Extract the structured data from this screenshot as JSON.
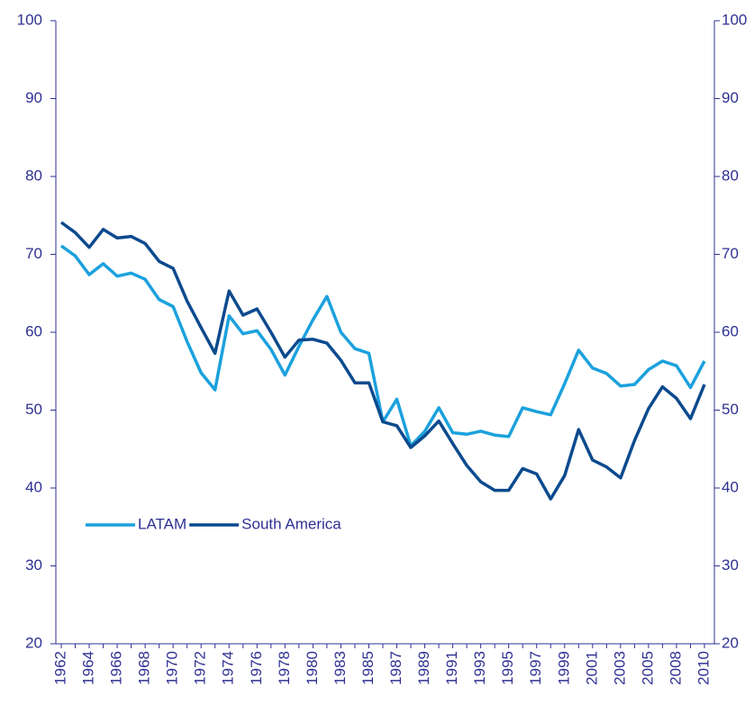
{
  "chart_data": {
    "type": "line",
    "categories": [
      "1962",
      null,
      "1964",
      null,
      "1966",
      null,
      "1968",
      null,
      "1970",
      null,
      "1972",
      null,
      "1974",
      null,
      "1976",
      null,
      "1978",
      null,
      "1980",
      null,
      "1983",
      null,
      "1985",
      null,
      "1987",
      null,
      "1989",
      null,
      "1991",
      null,
      "1993",
      null,
      "1995",
      null,
      "1997",
      null,
      "1999",
      null,
      "2001",
      null,
      "2003",
      null,
      "2005",
      null,
      "2008",
      null,
      "2010"
    ],
    "series": [
      {
        "name": "LATAM",
        "color": "#1ba1dd",
        "values": [
          71.1,
          69.8,
          67.4,
          68.8,
          67.2,
          67.6,
          66.8,
          64.2,
          63.3,
          58.8,
          54.8,
          52.6,
          62.1,
          59.8,
          60.2,
          57.8,
          54.5,
          58.2,
          61.6,
          64.6,
          60.0,
          57.9,
          57.3,
          48.5,
          51.4,
          45.4,
          47.3,
          50.3,
          47.1,
          46.9,
          47.3,
          46.8,
          46.6,
          50.3,
          49.8,
          49.4,
          53.4,
          57.7,
          55.4,
          54.7,
          53.1,
          53.3,
          55.2,
          56.3,
          55.7,
          52.9,
          56.3
        ]
      },
      {
        "name": "South America",
        "color": "#0c4a8e",
        "values": [
          74.1,
          72.8,
          70.9,
          73.2,
          72.1,
          72.3,
          71.4,
          69.1,
          68.2,
          64.0,
          60.6,
          57.3,
          65.3,
          62.2,
          63.0,
          60.0,
          56.8,
          59.0,
          59.1,
          58.6,
          56.4,
          53.5,
          53.5,
          48.5,
          48.0,
          45.2,
          46.7,
          48.6,
          45.7,
          42.9,
          40.8,
          39.7,
          39.7,
          42.5,
          41.8,
          38.6,
          41.6,
          47.5,
          43.6,
          42.7,
          41.3,
          46.1,
          50.2,
          53.0,
          51.5,
          48.9,
          53.3
        ]
      }
    ],
    "ylim": [
      20,
      100
    ],
    "yticks": [
      20,
      30,
      40,
      50,
      60,
      70,
      80,
      90,
      100
    ],
    "y2lim": [
      20,
      100
    ],
    "y2ticks": [
      20,
      30,
      40,
      50,
      60,
      70,
      80,
      90,
      100
    ],
    "grid": false,
    "legend": "lower-left"
  }
}
